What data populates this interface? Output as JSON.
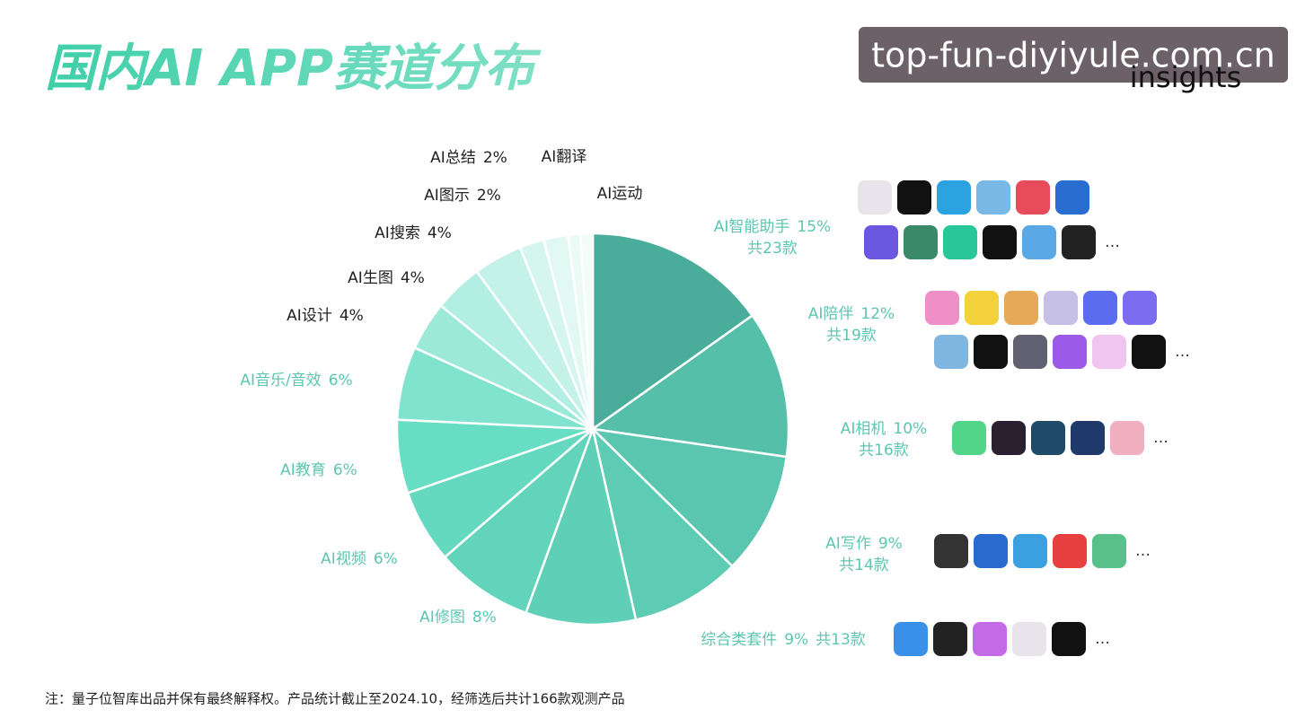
{
  "header": {
    "title": "国内AI APP赛道分布",
    "watermark": "top-fun-diyiyule.com.cn",
    "brand": "insights"
  },
  "chart_data": {
    "type": "pie",
    "categories": [
      "AI智能助手",
      "AI陪伴",
      "AI相机",
      "AI写作",
      "综合类套件",
      "AI修图",
      "AI视频",
      "AI教育",
      "AI音乐/音效",
      "AI设计",
      "AI生图",
      "AI搜索",
      "AI图示",
      "AI总结",
      "AI翻译",
      "AI运动"
    ],
    "values": [
      15,
      12,
      10,
      9,
      9,
      8,
      6,
      6,
      6,
      4,
      4,
      4,
      2,
      2,
      1,
      1
    ],
    "value_labels": [
      "15%",
      "12%",
      "10%",
      "9%",
      "9%",
      "8%",
      "6%",
      "6%",
      "6%",
      "4%",
      "4%",
      "4%",
      "2%",
      "2%",
      null,
      null
    ],
    "counts": [
      23,
      19,
      16,
      14,
      13,
      null,
      null,
      null,
      null,
      null,
      null,
      null,
      null,
      null,
      null,
      null
    ],
    "count_labels": [
      "共23款",
      "共19款",
      "共16款",
      "共14款",
      "共13款",
      null,
      null,
      null,
      null,
      null,
      null,
      null,
      null,
      null,
      null,
      null
    ],
    "colors": [
      "#4aad9c",
      "#55bfa9",
      "#5bc6b0",
      "#5ecbb5",
      "#60cfb8",
      "#62d4bc",
      "#64d9c0",
      "#67dec4",
      "#7fe3cd",
      "#9de9d8",
      "#b2eee1",
      "#c4f2e8",
      "#d6f5ee",
      "#e2f8f3",
      "#ecfaf6",
      "#f3fcf9"
    ]
  },
  "icon_more": "…",
  "footnote": "注：量子位智库出品并保有最终解释权。产品统计截止至2024.10，经筛选后共计166款观测产品"
}
